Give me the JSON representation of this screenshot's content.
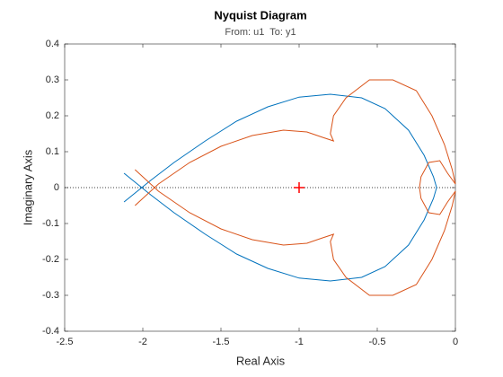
{
  "chart_data": {
    "type": "line",
    "title": "Nyquist Diagram",
    "subtitle": "From: u1  To: y1",
    "x_label": "Real Axis",
    "y_label": "Imaginary Axis",
    "xlim": [
      -2.5,
      0
    ],
    "ylim": [
      -0.4,
      0.4
    ],
    "xticks": [
      -2.5,
      -2,
      -1.5,
      -1,
      -0.5,
      0
    ],
    "yticks": [
      -0.4,
      -0.3,
      -0.2,
      -0.1,
      0,
      0.1,
      0.2,
      0.3,
      0.4
    ],
    "critical_point": {
      "x": -1,
      "y": 0,
      "color": "#ff0000"
    },
    "series": [
      {
        "color": "#0072bd",
        "x": [
          -2.12,
          -1.95,
          -1.8,
          -1.6,
          -1.4,
          -1.2,
          -1.0,
          -0.8,
          -0.6,
          -0.45,
          -0.3,
          -0.2,
          -0.14,
          -0.12,
          -0.14,
          -0.2,
          -0.3,
          -0.45,
          -0.6,
          -0.8,
          -1.0,
          -1.2,
          -1.4,
          -1.6,
          -1.8,
          -1.95,
          -2.12
        ],
        "values": [
          -0.04,
          0.02,
          0.07,
          0.13,
          0.185,
          0.225,
          0.252,
          0.26,
          0.25,
          0.22,
          0.16,
          0.09,
          0.03,
          0,
          -0.03,
          -0.09,
          -0.16,
          -0.22,
          -0.25,
          -0.26,
          -0.252,
          -0.225,
          -0.185,
          -0.13,
          -0.07,
          -0.02,
          0.04
        ]
      },
      {
        "color": "#d95319",
        "x": [
          -2.05,
          -1.9,
          -1.7,
          -1.5,
          -1.3,
          -1.1,
          -0.95,
          -0.85,
          -0.78,
          -0.8,
          -0.78,
          -0.7,
          -0.55,
          -0.4,
          -0.25,
          -0.15,
          -0.07,
          -0.02,
          0,
          -0.05,
          -0.1,
          -0.17,
          -0.22,
          -0.23,
          -0.22,
          -0.17,
          -0.1,
          -0.05,
          0,
          -0.02,
          -0.07,
          -0.15,
          -0.25,
          -0.4,
          -0.55,
          -0.7,
          -0.78,
          -0.8,
          -0.78,
          -0.85,
          -0.95,
          -1.1,
          -1.3,
          -1.5,
          -1.7,
          -1.9,
          -2.05
        ],
        "values": [
          -0.05,
          0.01,
          0.07,
          0.115,
          0.145,
          0.16,
          0.155,
          0.14,
          0.13,
          0.15,
          0.2,
          0.25,
          0.3,
          0.3,
          0.27,
          0.2,
          0.12,
          0.05,
          0.01,
          0.04,
          0.075,
          0.07,
          0.03,
          0,
          -0.03,
          -0.07,
          -0.075,
          -0.04,
          -0.01,
          -0.05,
          -0.12,
          -0.2,
          -0.27,
          -0.3,
          -0.3,
          -0.25,
          -0.2,
          -0.15,
          -0.13,
          -0.14,
          -0.155,
          -0.16,
          -0.145,
          -0.115,
          -0.07,
          -0.01,
          0.05
        ]
      }
    ]
  }
}
